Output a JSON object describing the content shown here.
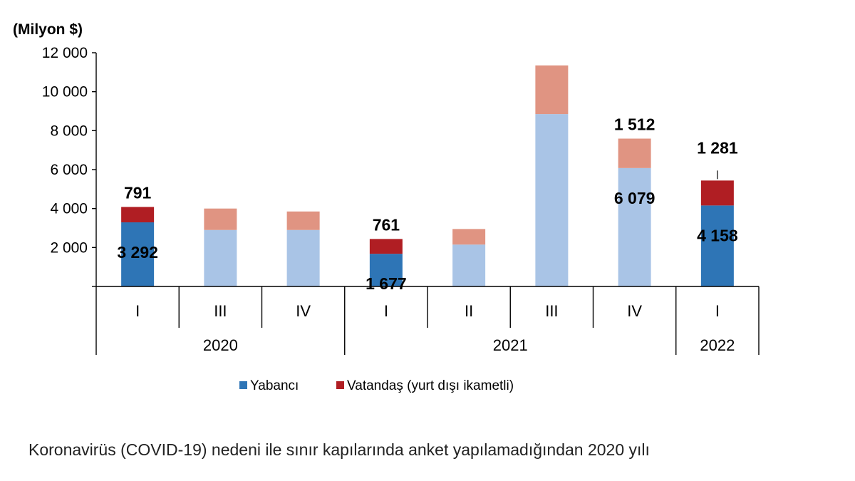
{
  "chart_data": {
    "type": "bar",
    "stacked": true,
    "unit_label": "(Milyon $)",
    "ylim": [
      0,
      12000
    ],
    "yticks": [
      0,
      2000,
      4000,
      6000,
      8000,
      10000,
      12000
    ],
    "ytick_labels": [
      "",
      "2 000",
      "4 000",
      "6 000",
      "8 000",
      "10 000",
      "12 000"
    ],
    "grid": false,
    "legend_position": "bottom",
    "categories": [
      {
        "label": "I",
        "year": "2020",
        "highlighted": true
      },
      {
        "label": "III",
        "year": "2020",
        "highlighted": false
      },
      {
        "label": "IV",
        "year": "2020",
        "highlighted": false
      },
      {
        "label": "I",
        "year": "2021",
        "highlighted": true
      },
      {
        "label": "II",
        "year": "2021",
        "highlighted": false
      },
      {
        "label": "III",
        "year": "2021",
        "highlighted": false
      },
      {
        "label": "IV",
        "year": "2021",
        "highlighted": false
      },
      {
        "label": "I",
        "year": "2022",
        "highlighted": true
      }
    ],
    "year_groups": [
      {
        "label": "2020",
        "start": 0,
        "end": 2
      },
      {
        "label": "2021",
        "start": 3,
        "end": 6
      },
      {
        "label": "2022",
        "start": 7,
        "end": 7
      }
    ],
    "series": [
      {
        "name": "Yabancı",
        "color": "#2e75b6",
        "muted_color": "#a9c4e6",
        "values": [
          3292,
          2900,
          2900,
          1677,
          2150,
          8850,
          6079,
          4158
        ],
        "labels": [
          "3 292",
          "",
          "",
          "1 677",
          "",
          "",
          "6 079",
          "4 158"
        ]
      },
      {
        "name": "Vatandaş (yurt dışı ikametli)",
        "color": "#b01e23",
        "muted_color": "#e09482",
        "values": [
          791,
          1100,
          950,
          761,
          800,
          2500,
          1512,
          1281
        ],
        "labels": [
          "791",
          "",
          "",
          "761",
          "",
          "",
          "1 512",
          "1 281"
        ]
      }
    ]
  },
  "footnote": "Koronavirüs (COVID-19) nedeni ile sınır kapılarında anket yapılamadığından 2020 yılı"
}
